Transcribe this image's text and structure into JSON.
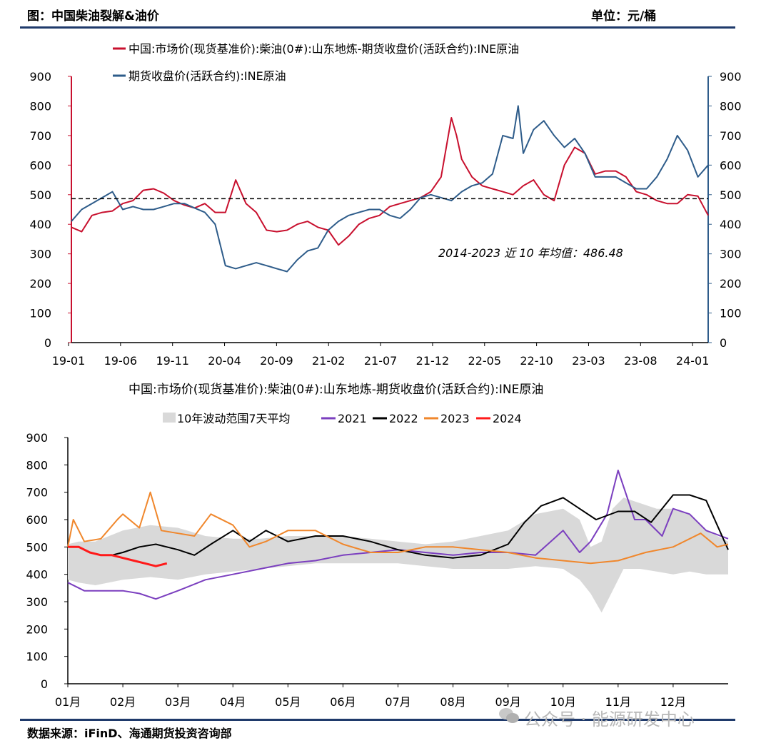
{
  "header": {
    "title": "图：中国柴油裂解&油价",
    "unit": "单位：元/桶"
  },
  "footer": {
    "source": "数据来源：iFinD、海通期货投资咨询部",
    "watermark": "公众号 · 能源研发中心"
  },
  "colors": {
    "crack": "#c8102e",
    "crude": "#2e5c8a",
    "band": "#d9d9d9",
    "y2021": "#7b3fbf",
    "y2022": "#000000",
    "y2023": "#f0872c",
    "y2024": "#ff1a1a",
    "rule": "#1f3a6b"
  },
  "chart_data": [
    {
      "type": "line",
      "title": "",
      "legend": [
        "中国:市场价(现货基准价):柴油(0#):山东地炼-期货收盘价(活跃合约):INE原油",
        "期货收盘价(活跃合约):INE原油"
      ],
      "x_ticks": [
        "19-01",
        "19-06",
        "19-11",
        "20-04",
        "20-09",
        "21-02",
        "21-07",
        "21-12",
        "22-05",
        "22-10",
        "23-03",
        "23-08",
        "24-01"
      ],
      "ylim": [
        0,
        900
      ],
      "y_ticks": [
        0,
        100,
        200,
        300,
        400,
        500,
        600,
        700,
        800,
        900
      ],
      "y2_ticks": [
        0,
        100,
        200,
        300,
        400,
        500,
        600,
        700,
        800,
        900
      ],
      "reference_line": {
        "value": 486.48,
        "label": "2014-2023 近 10 年均值：486.48"
      },
      "x_range": [
        0,
        62
      ],
      "series": [
        {
          "name": "中国:市场价(现货基准价):柴油(0#):山东地炼-期货收盘价(活跃合约):INE原油",
          "axis": "left",
          "x": [
            0,
            1,
            2,
            3,
            4,
            5,
            6,
            7,
            8,
            9,
            10,
            11,
            12,
            13,
            14,
            15,
            16,
            17,
            18,
            19,
            20,
            21,
            22,
            23,
            24,
            25,
            26,
            27,
            28,
            29,
            30,
            31,
            32,
            33,
            34,
            35,
            36,
            37,
            37.5,
            38,
            39,
            40,
            41,
            42,
            43,
            44,
            45,
            46,
            47,
            48,
            49,
            50,
            51,
            52,
            53,
            54,
            55,
            56,
            57,
            58,
            59,
            60,
            61,
            62
          ],
          "values": [
            390,
            375,
            430,
            440,
            445,
            470,
            480,
            515,
            520,
            505,
            480,
            465,
            455,
            470,
            440,
            440,
            550,
            470,
            440,
            380,
            375,
            380,
            400,
            410,
            390,
            380,
            330,
            360,
            400,
            420,
            430,
            460,
            470,
            480,
            490,
            510,
            560,
            760,
            700,
            620,
            560,
            530,
            520,
            510,
            500,
            530,
            550,
            500,
            480,
            600,
            660,
            640,
            570,
            580,
            580,
            560,
            510,
            500,
            480,
            470,
            470,
            500,
            495,
            430
          ]
        },
        {
          "name": "期货收盘价(活跃合约):INE原油",
          "axis": "right",
          "x": [
            0,
            1,
            2,
            3,
            4,
            5,
            6,
            7,
            8,
            9,
            10,
            11,
            12,
            13,
            14,
            15,
            16,
            17,
            18,
            19,
            20,
            21,
            22,
            23,
            24,
            25,
            26,
            27,
            28,
            29,
            30,
            31,
            32,
            33,
            34,
            35,
            36,
            37,
            38,
            39,
            40,
            41,
            42,
            43,
            43.5,
            44,
            45,
            46,
            47,
            48,
            49,
            50,
            51,
            52,
            53,
            54,
            55,
            56,
            57,
            58,
            59,
            60,
            61,
            62
          ],
          "values": [
            410,
            450,
            470,
            490,
            510,
            450,
            460,
            450,
            450,
            460,
            470,
            470,
            455,
            440,
            400,
            260,
            250,
            260,
            270,
            260,
            250,
            240,
            280,
            310,
            320,
            380,
            410,
            430,
            440,
            450,
            450,
            430,
            420,
            450,
            490,
            500,
            490,
            480,
            510,
            530,
            540,
            570,
            700,
            690,
            800,
            640,
            720,
            750,
            700,
            660,
            690,
            640,
            560,
            560,
            560,
            540,
            520,
            520,
            560,
            620,
            700,
            650,
            560,
            600
          ]
        }
      ]
    },
    {
      "type": "line",
      "title": "中国:市场价(现货基准价):柴油(0#):山东地炼-期货收盘价(活跃合约):INE原油",
      "legend": [
        "10年波动范围7天平均",
        "2021",
        "2022",
        "2023",
        "2024"
      ],
      "x_ticks": [
        "01月",
        "02月",
        "03月",
        "04月",
        "05月",
        "06月",
        "07月",
        "08月",
        "09月",
        "10月",
        "11月",
        "12月"
      ],
      "ylim": [
        0,
        900
      ],
      "y_ticks": [
        0,
        100,
        200,
        300,
        400,
        500,
        600,
        700,
        800,
        900
      ],
      "x_range": [
        0,
        12
      ],
      "band": {
        "name": "10年波动范围7天平均",
        "x": [
          0,
          0.2,
          0.5,
          1.0,
          1.5,
          2.0,
          2.5,
          3.0,
          3.5,
          4.0,
          4.5,
          5.0,
          5.5,
          6.0,
          6.5,
          7.0,
          7.5,
          8.0,
          8.5,
          9.0,
          9.3,
          9.5,
          9.7,
          9.9,
          10.1,
          10.4,
          10.7,
          11.0,
          11.3,
          11.6,
          12.0
        ],
        "upper": [
          510,
          520,
          520,
          560,
          580,
          570,
          540,
          530,
          530,
          540,
          540,
          540,
          530,
          520,
          510,
          520,
          540,
          560,
          620,
          640,
          600,
          500,
          520,
          640,
          680,
          660,
          640,
          640,
          620,
          560,
          520
        ],
        "lower": [
          380,
          370,
          360,
          380,
          390,
          380,
          400,
          410,
          420,
          430,
          440,
          440,
          440,
          440,
          430,
          420,
          420,
          420,
          430,
          420,
          380,
          330,
          260,
          340,
          420,
          420,
          410,
          400,
          410,
          400,
          400
        ]
      },
      "series": [
        {
          "name": "2021",
          "x": [
            0,
            0.3,
            0.6,
            1.0,
            1.3,
            1.6,
            2.0,
            2.5,
            3.0,
            3.5,
            4.0,
            4.5,
            5.0,
            5.5,
            6.0,
            6.5,
            7.0,
            7.5,
            8.0,
            8.5,
            9.0,
            9.3,
            9.5,
            9.8,
            10.0,
            10.3,
            10.5,
            10.8,
            11.0,
            11.3,
            11.6,
            12.0
          ],
          "values": [
            370,
            340,
            340,
            340,
            330,
            310,
            340,
            380,
            400,
            420,
            440,
            450,
            470,
            480,
            490,
            480,
            470,
            480,
            480,
            470,
            560,
            480,
            520,
            620,
            780,
            600,
            600,
            540,
            640,
            620,
            560,
            530
          ]
        },
        {
          "name": "2022",
          "x": [
            0.8,
            1.0,
            1.3,
            1.6,
            2.0,
            2.3,
            2.6,
            3.0,
            3.3,
            3.6,
            4.0,
            4.5,
            5.0,
            5.5,
            6.0,
            6.5,
            7.0,
            7.5,
            8.0,
            8.3,
            8.6,
            9.0,
            9.3,
            9.6,
            10.0,
            10.3,
            10.6,
            11.0,
            11.3,
            11.6,
            12.0
          ],
          "values": [
            470,
            480,
            500,
            510,
            490,
            470,
            510,
            560,
            520,
            560,
            520,
            540,
            540,
            520,
            490,
            470,
            460,
            470,
            510,
            590,
            650,
            680,
            640,
            600,
            630,
            630,
            590,
            690,
            690,
            670,
            490
          ]
        },
        {
          "name": "2023",
          "x": [
            0,
            0.1,
            0.3,
            0.6,
            0.9,
            1.0,
            1.3,
            1.5,
            1.7,
            2.0,
            2.3,
            2.6,
            3.0,
            3.3,
            3.6,
            4.0,
            4.5,
            5.0,
            5.5,
            6.0,
            6.5,
            7.0,
            7.5,
            8.0,
            8.5,
            9.0,
            9.5,
            10.0,
            10.5,
            11.0,
            11.5,
            11.8,
            12.0
          ],
          "values": [
            500,
            600,
            520,
            530,
            600,
            620,
            570,
            700,
            560,
            550,
            540,
            620,
            580,
            500,
            520,
            560,
            560,
            510,
            480,
            480,
            500,
            500,
            490,
            480,
            460,
            450,
            440,
            450,
            480,
            500,
            550,
            500,
            510
          ]
        },
        {
          "name": "2024",
          "x": [
            0,
            0.2,
            0.4,
            0.6,
            0.8,
            1.0,
            1.2,
            1.4,
            1.6,
            1.8
          ],
          "values": [
            500,
            500,
            480,
            470,
            470,
            460,
            450,
            440,
            430,
            440
          ]
        }
      ]
    }
  ]
}
